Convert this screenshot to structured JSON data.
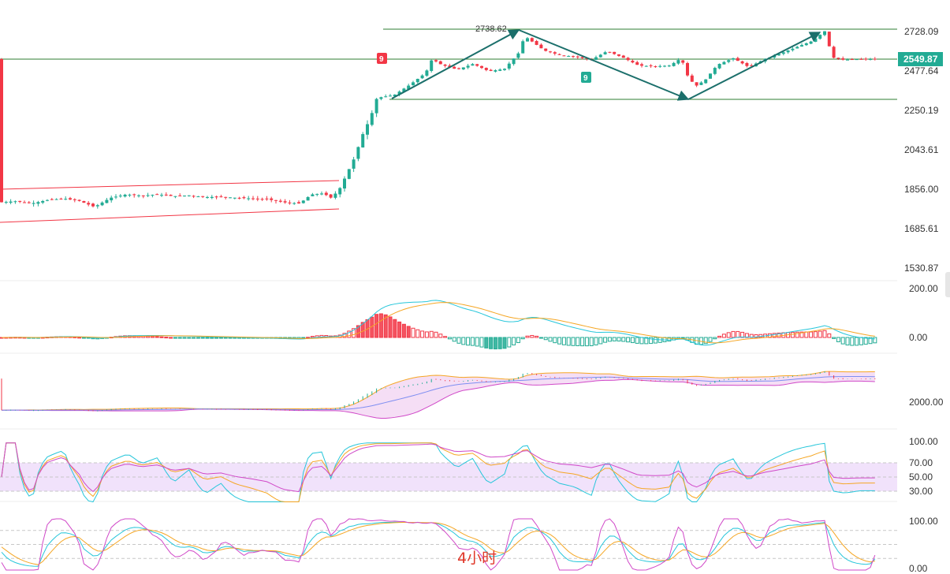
{
  "timeframe_label": "4小时",
  "colors": {
    "up": "#22ab94",
    "down": "#f23645",
    "channel": "#f23645",
    "range": "#2e7d32",
    "arrow": "#1b6f6b",
    "macd_dif": "#26c6da",
    "macd_dea": "#f5a623",
    "boll_mid": "#7e8ef1",
    "boll_fill": "#f3d6f2",
    "rsi_band": "#f1e2fb",
    "k": "#26c6da",
    "d": "#f5a623",
    "j": "#d048c8"
  },
  "chart_data": {
    "type": "candlestick",
    "price_axis": {
      "ticks": [
        "2728.09",
        "2477.64",
        "2250.19",
        "2043.61",
        "1856.00",
        "1685.61",
        "1530.87"
      ],
      "current_price": "2549.87"
    },
    "annotations": {
      "peak_label": "2738.62",
      "td_marker_red": "9",
      "td_marker_green": "9"
    },
    "panels": [
      {
        "name": "MACD",
        "ticks": [
          "200.00",
          "0.00"
        ]
      },
      {
        "name": "BOLL",
        "ticks": [
          "2000.00"
        ]
      },
      {
        "name": "RSI",
        "ticks": [
          "100.00",
          "70.00",
          "50.00",
          "30.00"
        ]
      },
      {
        "name": "KDJ",
        "ticks": [
          "100.00",
          "0.00"
        ]
      }
    ],
    "price_waypoints": [
      [
        0,
        1795
      ],
      [
        20,
        1800
      ],
      [
        40,
        1790
      ],
      [
        60,
        1805
      ],
      [
        80,
        1812
      ],
      [
        100,
        1802
      ],
      [
        120,
        1775
      ],
      [
        140,
        1815
      ],
      [
        160,
        1830
      ],
      [
        180,
        1825
      ],
      [
        200,
        1830
      ],
      [
        220,
        1822
      ],
      [
        240,
        1826
      ],
      [
        260,
        1818
      ],
      [
        280,
        1820
      ],
      [
        300,
        1815
      ],
      [
        320,
        1812
      ],
      [
        340,
        1808
      ],
      [
        360,
        1795
      ],
      [
        380,
        1790
      ],
      [
        395,
        1830
      ],
      [
        410,
        1835
      ],
      [
        420,
        1815
      ],
      [
        430,
        1850
      ],
      [
        440,
        1925
      ],
      [
        450,
        2005
      ],
      [
        460,
        2120
      ],
      [
        470,
        2210
      ],
      [
        478,
        2318
      ],
      [
        486,
        2325
      ],
      [
        500,
        2335
      ],
      [
        520,
        2395
      ],
      [
        540,
        2465
      ],
      [
        548,
        2550
      ],
      [
        560,
        2515
      ],
      [
        580,
        2485
      ],
      [
        600,
        2520
      ],
      [
        620,
        2475
      ],
      [
        640,
        2490
      ],
      [
        660,
        2600
      ],
      [
        665,
        2700
      ],
      [
        670,
        2680
      ],
      [
        690,
        2605
      ],
      [
        710,
        2575
      ],
      [
        730,
        2565
      ],
      [
        750,
        2545
      ],
      [
        770,
        2600
      ],
      [
        790,
        2560
      ],
      [
        810,
        2510
      ],
      [
        830,
        2505
      ],
      [
        850,
        2510
      ],
      [
        860,
        2545
      ],
      [
        866,
        2530
      ],
      [
        872,
        2450
      ],
      [
        882,
        2385
      ],
      [
        895,
        2425
      ],
      [
        910,
        2515
      ],
      [
        930,
        2555
      ],
      [
        950,
        2500
      ],
      [
        970,
        2550
      ],
      [
        990,
        2585
      ],
      [
        1010,
        2625
      ],
      [
        1030,
        2665
      ],
      [
        1046,
        2730
      ],
      [
        1056,
        2560
      ],
      [
        1070,
        2545
      ],
      [
        1090,
        2550
      ],
      [
        1110,
        2550
      ]
    ]
  }
}
